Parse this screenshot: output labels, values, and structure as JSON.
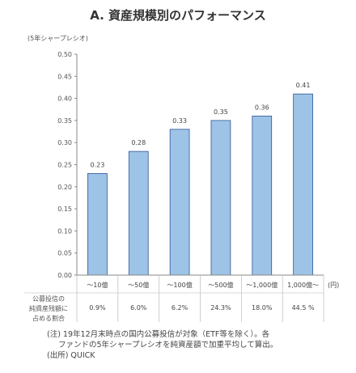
{
  "chart_data": {
    "type": "bar",
    "title": "A. 資産規模別のパフォーマンス",
    "ylabel": "(5年シャープレシオ)",
    "xunit": "(円)",
    "categories": [
      "～10億",
      "～50億",
      "～100億",
      "～500億",
      "～1,000億",
      "1,000億～"
    ],
    "values": [
      0.23,
      0.28,
      0.33,
      0.35,
      0.36,
      0.41
    ],
    "data_labels": [
      "0.23",
      "0.28",
      "0.33",
      "0.35",
      "0.36",
      "0.41"
    ],
    "ylim": [
      0,
      0.5
    ],
    "yticks": [
      "0.00",
      "0.05",
      "0.10",
      "0.15",
      "0.20",
      "0.25",
      "0.30",
      "0.35",
      "0.40",
      "0.45",
      "0.50"
    ],
    "bar_color": "#9dc3e6",
    "bar_edge": "#2f5597",
    "grid": false,
    "table": {
      "row_label": [
        "公募投信の",
        "純資産残額に",
        "占める割合"
      ],
      "values": [
        "0.9%",
        "6.0%",
        "6.2%",
        "24.3%",
        "18.0%",
        "44.5 %"
      ]
    }
  },
  "notes": [
    "(注) 19年12月末時点の国内公募投信が対象（ETF等を除く）。各",
    "ファンドの5年シャープレシオを純資産額で加重平均して算出。",
    "(出所) QUICK"
  ]
}
